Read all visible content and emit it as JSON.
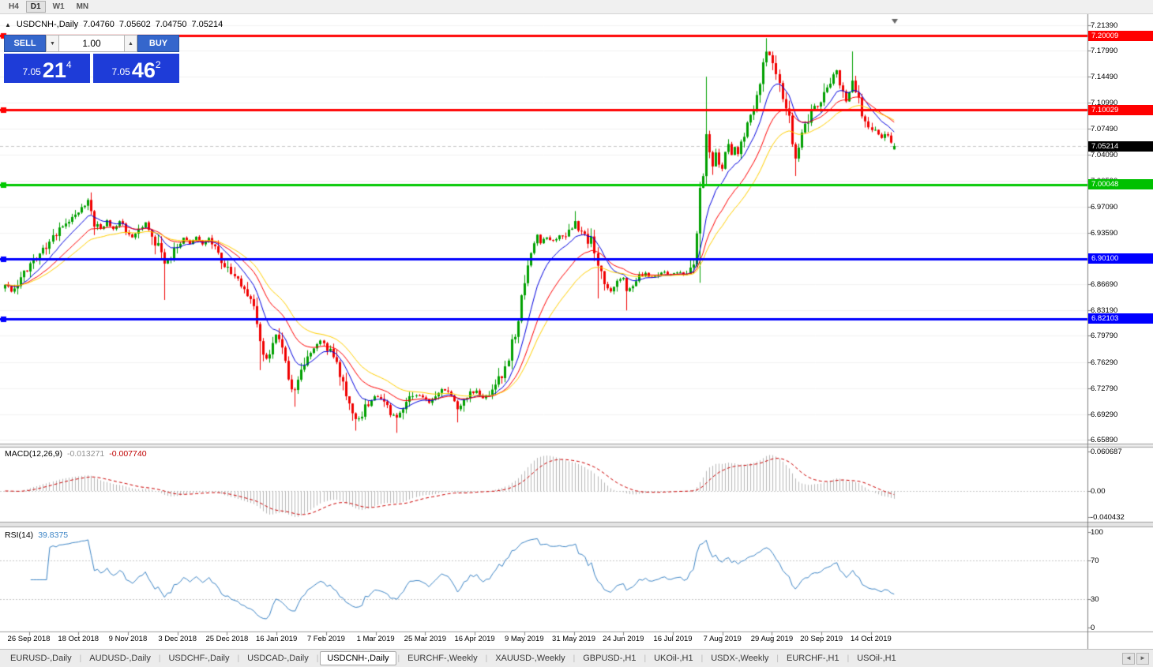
{
  "icons": {
    "one_click_collapse": "▲",
    "spinner_down": "▼",
    "spinner_up": "▲",
    "tabs_scroll_left": "◄",
    "tabs_scroll_right": "►"
  },
  "toolbar": {
    "periods": [
      {
        "label": "H4",
        "active": false
      },
      {
        "label": "D1",
        "active": true
      },
      {
        "label": "W1",
        "active": false
      },
      {
        "label": "MN",
        "active": false
      }
    ]
  },
  "chart_header": {
    "symbol_period": "USDCNH-,Daily",
    "open": "7.04760",
    "high": "7.05602",
    "low": "7.04750",
    "close": "7.05214"
  },
  "one_click": {
    "sell_label": "SELL",
    "buy_label": "BUY",
    "volume": "1.00",
    "sell_price_small": "7.05",
    "sell_price_big": "21",
    "sell_price_sup": "4",
    "buy_price_small": "7.05",
    "buy_price_big": "46",
    "buy_price_sup": "2"
  },
  "price_axis": {
    "ticks": [
      "7.21390",
      "7.17990",
      "7.14490",
      "7.10990",
      "7.07490",
      "7.04090",
      "7.00590",
      "6.97090",
      "6.93590",
      "6.86690",
      "6.83190",
      "6.79790",
      "6.76290",
      "6.72790",
      "6.69290",
      "6.65890"
    ],
    "flags": [
      {
        "text": "7.20009",
        "color": "#ff0000",
        "price": 7.20009
      },
      {
        "text": "7.10029",
        "color": "#ff0000",
        "price": 7.10029
      },
      {
        "text": "7.05214",
        "color": "#000000",
        "price": 7.05214
      },
      {
        "text": "7.00048",
        "color": "#00c000",
        "price": 7.00048
      },
      {
        "text": "6.90100",
        "color": "#0000ff",
        "price": 6.901
      },
      {
        "text": "6.82103",
        "color": "#0000ff",
        "price": 6.82103
      }
    ]
  },
  "macd_panel": {
    "label": "MACD(12,26,9)",
    "value": "-0.013271",
    "signal": "-0.007740",
    "axis": [
      {
        "text": "0.060687",
        "v": 0.060687
      },
      {
        "text": "0.00",
        "v": 0
      },
      {
        "text": "-0.040432",
        "v": -0.040432
      }
    ]
  },
  "rsi_panel": {
    "label": "RSI(14)",
    "value": "39.8375",
    "axis": [
      {
        "text": "100",
        "v": 100
      },
      {
        "text": "70",
        "v": 70
      },
      {
        "text": "30",
        "v": 30
      },
      {
        "text": "0",
        "v": 0
      }
    ]
  },
  "date_axis": [
    "26 Sep 2018",
    "18 Oct 2018",
    "9 Nov 2018",
    "3 Dec 2018",
    "25 Dec 2018",
    "16 Jan 2019",
    "7 Feb 2019",
    "1 Mar 2019",
    "25 Mar 2019",
    "16 Apr 2019",
    "9 May 2019",
    "31 May 2019",
    "24 Jun 2019",
    "16 Jul 2019",
    "7 Aug 2019",
    "29 Aug 2019",
    "20 Sep 2019",
    "14 Oct 2019"
  ],
  "tabs": {
    "items": [
      {
        "label": "EURUSD-,Daily",
        "active": false
      },
      {
        "label": "AUDUSD-,Daily",
        "active": false
      },
      {
        "label": "USDCHF-,Daily",
        "active": false
      },
      {
        "label": "USDCAD-,Daily",
        "active": false
      },
      {
        "label": "USDCNH-,Daily",
        "active": true
      },
      {
        "label": "EURCHF-,Weekly",
        "active": false
      },
      {
        "label": "XAUUSD-,Weekly",
        "active": false
      },
      {
        "label": "GBPUSD-,H1",
        "active": false
      },
      {
        "label": "UKOil-,H1",
        "active": false
      },
      {
        "label": "USDX-,Weekly",
        "active": false
      },
      {
        "label": "EURCHF-,H1",
        "active": false
      },
      {
        "label": "USOil-,H1",
        "active": false
      }
    ]
  },
  "chart_data": {
    "type": "candlestick",
    "title": "USDCNH-,Daily",
    "timeframe": "Daily",
    "x_range": [
      "26 Sep 2018",
      "24 Oct 2019"
    ],
    "ylim": [
      6.6589,
      7.2139
    ],
    "num_candles": 280,
    "colors": {
      "up": "#00a000",
      "down": "#f00000",
      "ma_fast": "#0000e0",
      "ma_mid": "#ff0000",
      "ma_slow": "#ffd000",
      "macd_hist": "#b8b8b8",
      "macd_signal": "#cc0000",
      "rsi_line": "#3d85c6"
    },
    "levels": [
      {
        "price": 7.20009,
        "color": "#ff0000"
      },
      {
        "price": 7.10029,
        "color": "#ff0000"
      },
      {
        "price": 7.00048,
        "color": "#00c800"
      },
      {
        "price": 6.901,
        "color": "#0000ff"
      },
      {
        "price": 6.82103,
        "color": "#0000ff"
      }
    ],
    "current_price": 7.05214,
    "last_candle": {
      "open": 7.0476,
      "high": 7.05602,
      "low": 7.0475,
      "close": 7.05214
    },
    "moving_averages": [
      {
        "period": 10
      },
      {
        "period": 20
      },
      {
        "period": 30
      }
    ],
    "macd": {
      "fast": 12,
      "slow": 26,
      "signal": 9,
      "current": -0.013271,
      "current_signal": -0.00774,
      "axis_max": 0.060687,
      "axis_min": -0.040432
    },
    "rsi": {
      "period": 14,
      "current": 39.8375,
      "levels": [
        70,
        30
      ]
    },
    "close_waypoints": [
      [
        0,
        6.87
      ],
      [
        2,
        6.857
      ],
      [
        4,
        6.868
      ],
      [
        6,
        6.88
      ],
      [
        9,
        6.896
      ],
      [
        12,
        6.912
      ],
      [
        15,
        6.93
      ],
      [
        18,
        6.945
      ],
      [
        21,
        6.958
      ],
      [
        24,
        6.97
      ],
      [
        26,
        6.975
      ],
      [
        28,
        6.952
      ],
      [
        30,
        6.94
      ],
      [
        32,
        6.952
      ],
      [
        34,
        6.94
      ],
      [
        36,
        6.95
      ],
      [
        38,
        6.941
      ],
      [
        40,
        6.93
      ],
      [
        42,
        6.942
      ],
      [
        44,
        6.948
      ],
      [
        46,
        6.934
      ],
      [
        48,
        6.918
      ],
      [
        50,
        6.894
      ],
      [
        52,
        6.906
      ],
      [
        54,
        6.92
      ],
      [
        56,
        6.93
      ],
      [
        58,
        6.921
      ],
      [
        60,
        6.93
      ],
      [
        62,
        6.92
      ],
      [
        64,
        6.929
      ],
      [
        66,
        6.915
      ],
      [
        68,
        6.901
      ],
      [
        70,
        6.888
      ],
      [
        72,
        6.876
      ],
      [
        74,
        6.862
      ],
      [
        76,
        6.848
      ],
      [
        78,
        6.832
      ],
      [
        80,
        6.796
      ],
      [
        81,
        6.776
      ],
      [
        82,
        6.766
      ],
      [
        83,
        6.778
      ],
      [
        84,
        6.792
      ],
      [
        85,
        6.8
      ],
      [
        86,
        6.792
      ],
      [
        87,
        6.778
      ],
      [
        88,
        6.76
      ],
      [
        89,
        6.742
      ],
      [
        90,
        6.728
      ],
      [
        91,
        6.722
      ],
      [
        92,
        6.742
      ],
      [
        93,
        6.756
      ],
      [
        95,
        6.77
      ],
      [
        97,
        6.78
      ],
      [
        99,
        6.79
      ],
      [
        101,
        6.782
      ],
      [
        103,
        6.77
      ],
      [
        105,
        6.745
      ],
      [
        107,
        6.718
      ],
      [
        109,
        6.692
      ],
      [
        110,
        6.686
      ],
      [
        112,
        6.695
      ],
      [
        114,
        6.708
      ],
      [
        116,
        6.718
      ],
      [
        118,
        6.712
      ],
      [
        120,
        6.701
      ],
      [
        122,
        6.692
      ],
      [
        123,
        6.688
      ],
      [
        125,
        6.7
      ],
      [
        127,
        6.712
      ],
      [
        129,
        6.72
      ],
      [
        131,
        6.715
      ],
      [
        133,
        6.707
      ],
      [
        135,
        6.716
      ],
      [
        137,
        6.724
      ],
      [
        139,
        6.727
      ],
      [
        141,
        6.712
      ],
      [
        142,
        6.7
      ],
      [
        144,
        6.71
      ],
      [
        146,
        6.72
      ],
      [
        148,
        6.724
      ],
      [
        150,
        6.716
      ],
      [
        152,
        6.722
      ],
      [
        154,
        6.729
      ],
      [
        156,
        6.746
      ],
      [
        158,
        6.772
      ],
      [
        160,
        6.8
      ],
      [
        161,
        6.82
      ],
      [
        162,
        6.845
      ],
      [
        163,
        6.872
      ],
      [
        164,
        6.9
      ],
      [
        165,
        6.915
      ],
      [
        166,
        6.925
      ],
      [
        167,
        6.931
      ],
      [
        168,
        6.922
      ],
      [
        170,
        6.931
      ],
      [
        172,
        6.925
      ],
      [
        174,
        6.933
      ],
      [
        176,
        6.928
      ],
      [
        178,
        6.944
      ],
      [
        179,
        6.951
      ],
      [
        180,
        6.941
      ],
      [
        182,
        6.931
      ],
      [
        184,
        6.925
      ],
      [
        185,
        6.908
      ],
      [
        186,
        6.888
      ],
      [
        188,
        6.868
      ],
      [
        190,
        6.858
      ],
      [
        192,
        6.868
      ],
      [
        194,
        6.876
      ],
      [
        195,
        6.856
      ],
      [
        197,
        6.869
      ],
      [
        199,
        6.877
      ],
      [
        201,
        6.881
      ],
      [
        203,
        6.876
      ],
      [
        205,
        6.88
      ],
      [
        207,
        6.883
      ],
      [
        209,
        6.879
      ],
      [
        211,
        6.883
      ],
      [
        213,
        6.88
      ],
      [
        215,
        6.884
      ],
      [
        216,
        6.891
      ],
      [
        217,
        6.932
      ],
      [
        218,
        6.993
      ],
      [
        219,
        7.012
      ],
      [
        220,
        7.062
      ],
      [
        221,
        7.04
      ],
      [
        222,
        7.028
      ],
      [
        223,
        7.047
      ],
      [
        224,
        7.031
      ],
      [
        225,
        7.022
      ],
      [
        226,
        7.041
      ],
      [
        227,
        7.057
      ],
      [
        228,
        7.042
      ],
      [
        229,
        7.051
      ],
      [
        230,
        7.047
      ],
      [
        231,
        7.059
      ],
      [
        232,
        7.068
      ],
      [
        233,
        7.079
      ],
      [
        234,
        7.091
      ],
      [
        235,
        7.103
      ],
      [
        236,
        7.119
      ],
      [
        237,
        7.139
      ],
      [
        238,
        7.161
      ],
      [
        239,
        7.179
      ],
      [
        240,
        7.171
      ],
      [
        241,
        7.157
      ],
      [
        242,
        7.144
      ],
      [
        243,
        7.131
      ],
      [
        244,
        7.121
      ],
      [
        245,
        7.107
      ],
      [
        246,
        7.087
      ],
      [
        247,
        7.061
      ],
      [
        248,
        7.04
      ],
      [
        249,
        7.051
      ],
      [
        250,
        7.067
      ],
      [
        251,
        7.081
      ],
      [
        252,
        7.091
      ],
      [
        253,
        7.099
      ],
      [
        254,
        7.107
      ],
      [
        255,
        7.101
      ],
      [
        256,
        7.109
      ],
      [
        257,
        7.117
      ],
      [
        258,
        7.127
      ],
      [
        259,
        7.137
      ],
      [
        260,
        7.147
      ],
      [
        261,
        7.153
      ],
      [
        262,
        7.139
      ],
      [
        263,
        7.121
      ],
      [
        264,
        7.111
      ],
      [
        265,
        7.123
      ],
      [
        266,
        7.141
      ],
      [
        267,
        7.127
      ],
      [
        268,
        7.111
      ],
      [
        269,
        7.097
      ],
      [
        270,
        7.085
      ],
      [
        271,
        7.075
      ],
      [
        272,
        7.069
      ],
      [
        273,
        7.075
      ],
      [
        274,
        7.069
      ],
      [
        275,
        7.063
      ],
      [
        276,
        7.069
      ],
      [
        277,
        7.063
      ],
      [
        278,
        7.057
      ],
      [
        279,
        7.052
      ]
    ],
    "wick_events": [
      {
        "i": 26,
        "high": 6.981
      },
      {
        "i": 50,
        "low": 6.846
      },
      {
        "i": 80,
        "low": 6.752
      },
      {
        "i": 91,
        "low": 6.703
      },
      {
        "i": 110,
        "low": 6.671
      },
      {
        "i": 123,
        "low": 6.668
      },
      {
        "i": 142,
        "low": 6.682
      },
      {
        "i": 179,
        "high": 6.965
      },
      {
        "i": 186,
        "low": 6.848
      },
      {
        "i": 195,
        "low": 6.832
      },
      {
        "i": 218,
        "low": 6.869,
        "high": 7.004
      },
      {
        "i": 220,
        "high": 7.145
      },
      {
        "i": 239,
        "high": 7.1966
      },
      {
        "i": 248,
        "low": 7.012
      },
      {
        "i": 266,
        "high": 7.1788
      }
    ]
  }
}
